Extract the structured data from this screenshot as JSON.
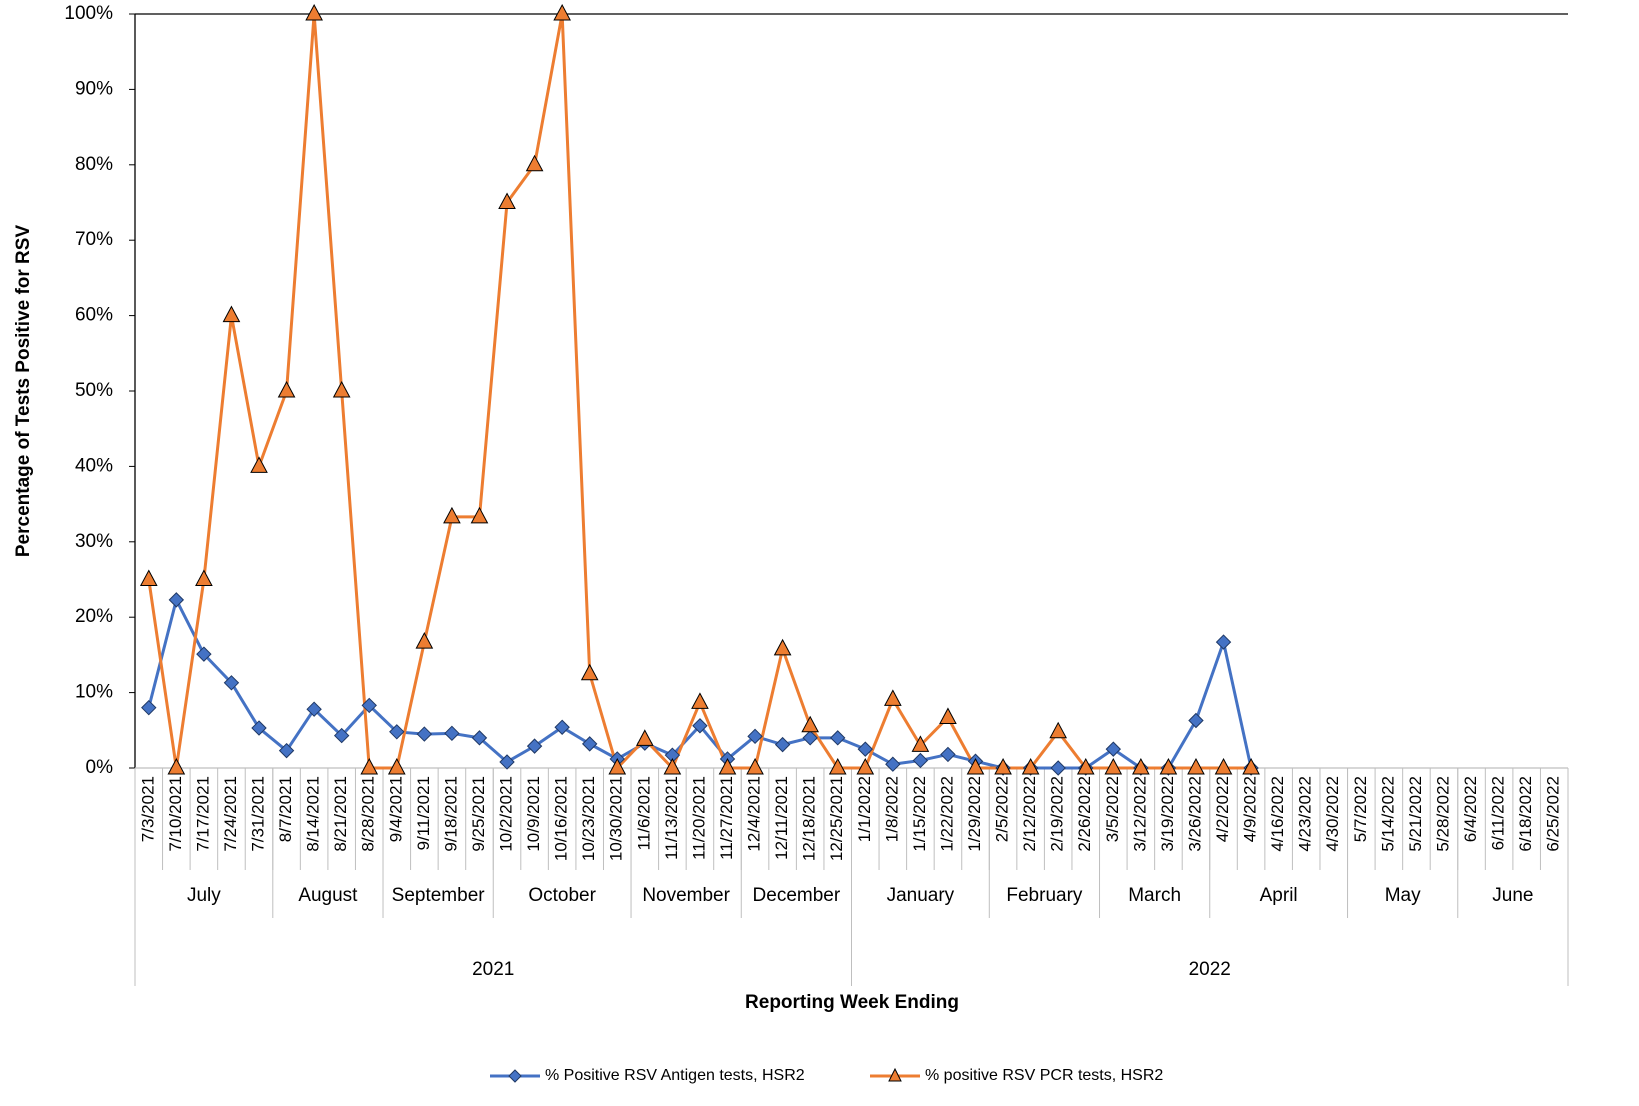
{
  "chart_data": {
    "type": "line",
    "y_label": "Percentage of Tests Positive for RSV",
    "x_label": "Reporting Week Ending",
    "categories": [
      "7/3/2021",
      "7/10/2021",
      "7/17/2021",
      "7/24/2021",
      "7/31/2021",
      "8/7/2021",
      "8/14/2021",
      "8/21/2021",
      "8/28/2021",
      "9/4/2021",
      "9/11/2021",
      "9/18/2021",
      "9/25/2021",
      "10/2/2021",
      "10/9/2021",
      "10/16/2021",
      "10/23/2021",
      "10/30/2021",
      "11/6/2021",
      "11/13/2021",
      "11/20/2021",
      "11/27/2021",
      "12/4/2021",
      "12/11/2021",
      "12/18/2021",
      "12/25/2021",
      "1/1/2022",
      "1/8/2022",
      "1/15/2022",
      "1/22/2022",
      "1/29/2022",
      "2/5/2022",
      "2/12/2022",
      "2/19/2022",
      "2/26/2022",
      "3/5/2022",
      "3/12/2022",
      "3/19/2022",
      "3/26/2022",
      "4/2/2022",
      "4/9/2022",
      "4/16/2022",
      "4/23/2022",
      "4/30/2022",
      "5/7/2022",
      "5/14/2022",
      "5/21/2022",
      "5/28/2022",
      "6/4/2022",
      "6/11/2022",
      "6/18/2022",
      "6/25/2022"
    ],
    "months": [
      "July",
      "August",
      "September",
      "October",
      "November",
      "December",
      "January",
      "February",
      "March",
      "April",
      "May",
      "June"
    ],
    "years": [
      "2021",
      "2022"
    ],
    "series": [
      {
        "name": "% Positive RSV Antigen tests, HSR2",
        "color": "#4472c4",
        "marker": "diamond",
        "values": [
          8,
          22.3,
          15.1,
          11.3,
          5.3,
          2.3,
          7.8,
          4.3,
          8.3,
          4.8,
          4.5,
          4.6,
          4.0,
          0.8,
          2.9,
          5.4,
          3.2,
          1.2,
          3.3,
          1.7,
          5.6,
          1.2,
          4.2,
          3.1,
          4.0,
          4.0,
          2.5,
          0.5,
          1.0,
          1.8,
          0.9,
          0,
          0,
          0,
          0,
          2.5,
          0,
          0,
          6.3,
          16.7,
          0,
          null,
          null,
          null,
          null,
          null,
          null,
          null,
          null,
          null,
          null,
          null
        ]
      },
      {
        "name": "% positive RSV PCR tests, HSR2",
        "color": "#ed7d31",
        "marker": "triangle",
        "values": [
          25,
          0,
          25,
          60,
          40,
          50,
          100,
          50,
          0,
          0,
          16.7,
          33.3,
          33.3,
          75,
          80,
          100,
          12.5,
          0,
          3.8,
          0,
          8.7,
          0,
          0,
          15.8,
          5.6,
          0,
          0,
          9.1,
          3.0,
          6.7,
          0,
          0,
          0,
          4.8,
          0,
          0,
          0,
          0,
          0,
          0,
          0,
          null,
          null,
          null,
          null,
          null,
          null,
          null,
          null,
          null,
          null,
          null
        ]
      }
    ],
    "ylim": [
      0,
      100
    ],
    "yticks": [
      {
        "value": 0,
        "label": "0%"
      },
      {
        "value": 10,
        "label": "10%"
      },
      {
        "value": 20,
        "label": "20%"
      },
      {
        "value": 30,
        "label": "30%"
      },
      {
        "value": 40,
        "label": "40%"
      },
      {
        "value": 50,
        "label": "50%"
      },
      {
        "value": 60,
        "label": "60%"
      },
      {
        "value": 70,
        "label": "70%"
      },
      {
        "value": 80,
        "label": "80%"
      },
      {
        "value": 90,
        "label": "90%"
      },
      {
        "value": 100,
        "label": "100%"
      }
    ],
    "grid": false,
    "legend": "bottom"
  }
}
